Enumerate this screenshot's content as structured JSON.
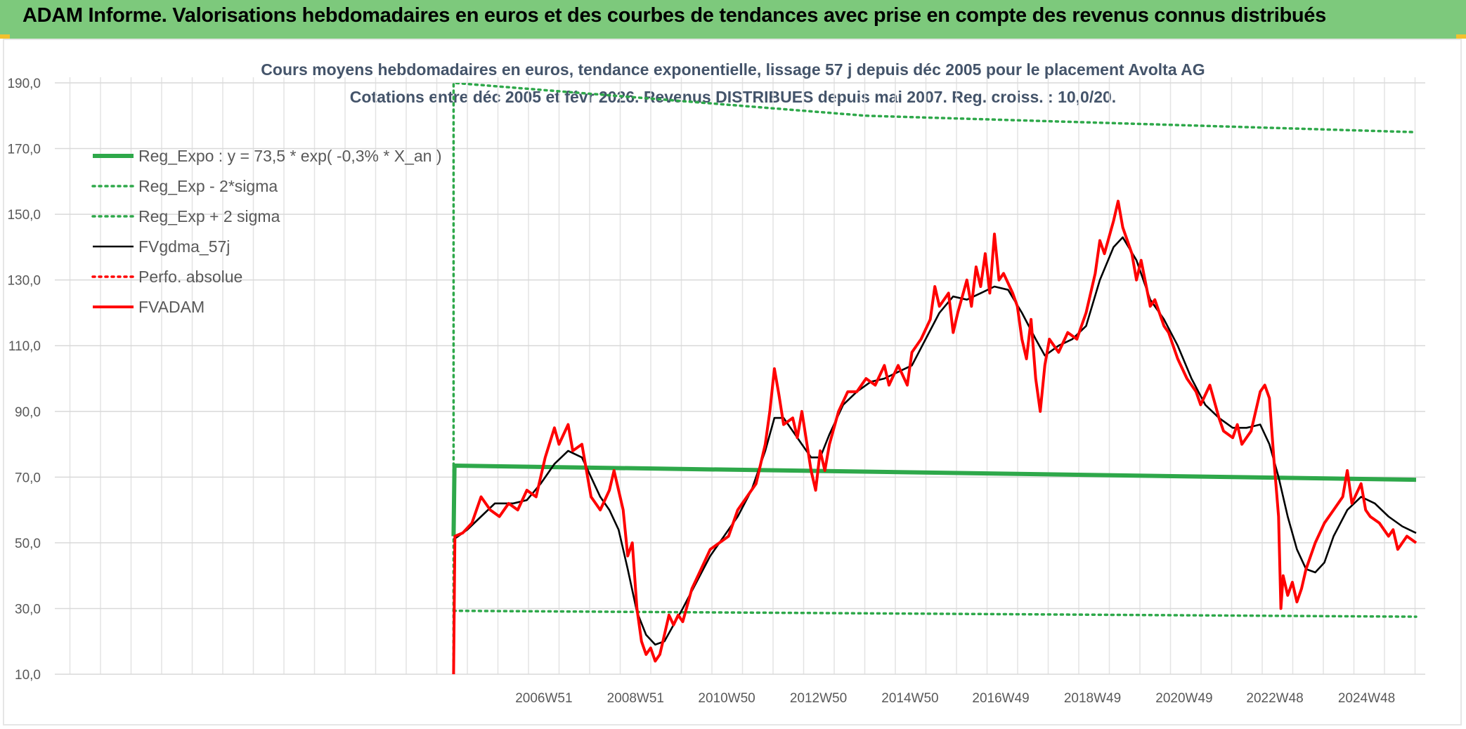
{
  "banner": {
    "title": "ADAM Informe. Valorisations hebdomadaires en euros et des courbes de tendances avec prise en compte des revenus connus distribués"
  },
  "chart_data": {
    "type": "line",
    "title": "Cours moyens hebdomadaires en euros, tendance exponentielle, lissage 57 j depuis déc 2005 pour le placement Avolta AG",
    "subtitle": "Cotations entre déc 2005 et févr 2026. Revenus DISTRIBUES depuis mai 2007. Reg. croiss. : 10,0/20.",
    "xlabel": "",
    "ylabel": "",
    "ylim": [
      10,
      190
    ],
    "xlim": [
      1996.3,
      2026.2
    ],
    "yticks": [
      "10,0",
      "30,0",
      "50,0",
      "70,0",
      "90,0",
      "110,0",
      "130,0",
      "150,0",
      "170,0",
      "190,0"
    ],
    "xticks": [
      {
        "label": "2006W51",
        "x": 2006.97
      },
      {
        "label": "2008W51",
        "x": 2008.97
      },
      {
        "label": "2010W50",
        "x": 2010.96
      },
      {
        "label": "2012W50",
        "x": 2012.96
      },
      {
        "label": "2014W50",
        "x": 2014.96
      },
      {
        "label": "2016W49",
        "x": 2016.94
      },
      {
        "label": "2018W49",
        "x": 2018.94
      },
      {
        "label": "2020W49",
        "x": 2020.94
      },
      {
        "label": "2022W48",
        "x": 2022.92
      },
      {
        "label": "2024W48",
        "x": 2024.92
      }
    ],
    "grid": true,
    "legend_position": "top-left",
    "series": [
      {
        "name": "Reg_Expo : y = 73,5 * exp( -0,3% *  X_an )",
        "color": "#2ea84a",
        "style": "solid-thick",
        "points": [
          [
            2005.0,
            52
          ],
          [
            2005.02,
            73.5
          ],
          [
            2026.0,
            69.2
          ]
        ]
      },
      {
        "name": "Reg_Exp - 2*sigma",
        "color": "#2ea84a",
        "style": "dotted",
        "points": [
          [
            2005.0,
            29.3
          ],
          [
            2026.0,
            27.5
          ]
        ]
      },
      {
        "name": "Reg_Exp + 2 sigma",
        "color": "#2ea84a",
        "style": "dotted",
        "points": [
          [
            2005.0,
            10
          ],
          [
            2005.0,
            190
          ],
          [
            2014.0,
            180
          ],
          [
            2026.0,
            175
          ]
        ]
      },
      {
        "name": "FVgdma_57j",
        "color": "#000000",
        "style": "solid",
        "points": [
          [
            2005.0,
            51
          ],
          [
            2005.3,
            54
          ],
          [
            2005.6,
            58
          ],
          [
            2005.9,
            62
          ],
          [
            2006.3,
            62
          ],
          [
            2006.6,
            63
          ],
          [
            2006.9,
            68
          ],
          [
            2007.2,
            74
          ],
          [
            2007.5,
            78
          ],
          [
            2007.8,
            76
          ],
          [
            2008.0,
            70
          ],
          [
            2008.2,
            64
          ],
          [
            2008.4,
            60
          ],
          [
            2008.6,
            54
          ],
          [
            2008.8,
            42
          ],
          [
            2009.0,
            29
          ],
          [
            2009.2,
            22
          ],
          [
            2009.4,
            19
          ],
          [
            2009.6,
            20
          ],
          [
            2009.8,
            25
          ],
          [
            2010.0,
            30
          ],
          [
            2010.3,
            38
          ],
          [
            2010.6,
            46
          ],
          [
            2010.9,
            52
          ],
          [
            2011.2,
            58
          ],
          [
            2011.5,
            66
          ],
          [
            2011.8,
            78
          ],
          [
            2012.0,
            88
          ],
          [
            2012.2,
            88
          ],
          [
            2012.4,
            84
          ],
          [
            2012.6,
            80
          ],
          [
            2012.8,
            76
          ],
          [
            2013.0,
            76
          ],
          [
            2013.2,
            83
          ],
          [
            2013.5,
            92
          ],
          [
            2013.8,
            96
          ],
          [
            2014.1,
            99
          ],
          [
            2014.4,
            100
          ],
          [
            2014.7,
            102
          ],
          [
            2015.0,
            104
          ],
          [
            2015.3,
            112
          ],
          [
            2015.6,
            120
          ],
          [
            2015.9,
            125
          ],
          [
            2016.2,
            124
          ],
          [
            2016.5,
            126
          ],
          [
            2016.8,
            128
          ],
          [
            2017.1,
            127
          ],
          [
            2017.4,
            120
          ],
          [
            2017.7,
            112
          ],
          [
            2017.9,
            107
          ],
          [
            2018.2,
            110
          ],
          [
            2018.5,
            112
          ],
          [
            2018.8,
            116
          ],
          [
            2019.1,
            130
          ],
          [
            2019.4,
            140
          ],
          [
            2019.6,
            143
          ],
          [
            2019.9,
            136
          ],
          [
            2020.2,
            124
          ],
          [
            2020.5,
            118
          ],
          [
            2020.8,
            110
          ],
          [
            2021.1,
            100
          ],
          [
            2021.4,
            92
          ],
          [
            2021.7,
            88
          ],
          [
            2022.0,
            85
          ],
          [
            2022.3,
            85
          ],
          [
            2022.6,
            86
          ],
          [
            2022.8,
            80
          ],
          [
            2023.0,
            70
          ],
          [
            2023.2,
            58
          ],
          [
            2023.4,
            48
          ],
          [
            2023.6,
            42
          ],
          [
            2023.8,
            41
          ],
          [
            2024.0,
            44
          ],
          [
            2024.2,
            52
          ],
          [
            2024.5,
            60
          ],
          [
            2024.8,
            64
          ],
          [
            2025.1,
            62
          ],
          [
            2025.4,
            58
          ],
          [
            2025.7,
            55
          ],
          [
            2026.0,
            53
          ]
        ]
      },
      {
        "name": "Perfo. absolue",
        "color": "#ff0000",
        "style": "dotted",
        "points": []
      },
      {
        "name": "FVADAM",
        "color": "#ff0000",
        "style": "solid-thick",
        "points": [
          [
            2005.0,
            10
          ],
          [
            2005.03,
            52
          ],
          [
            2005.2,
            53
          ],
          [
            2005.4,
            56
          ],
          [
            2005.6,
            64
          ],
          [
            2005.8,
            60
          ],
          [
            2006.0,
            58
          ],
          [
            2006.2,
            62
          ],
          [
            2006.4,
            60
          ],
          [
            2006.6,
            66
          ],
          [
            2006.8,
            64
          ],
          [
            2007.0,
            76
          ],
          [
            2007.2,
            85
          ],
          [
            2007.3,
            80
          ],
          [
            2007.5,
            86
          ],
          [
            2007.6,
            78
          ],
          [
            2007.8,
            80
          ],
          [
            2007.9,
            72
          ],
          [
            2008.0,
            64
          ],
          [
            2008.2,
            60
          ],
          [
            2008.4,
            66
          ],
          [
            2008.5,
            72
          ],
          [
            2008.7,
            60
          ],
          [
            2008.8,
            46
          ],
          [
            2008.9,
            50
          ],
          [
            2009.0,
            30
          ],
          [
            2009.1,
            20
          ],
          [
            2009.2,
            16
          ],
          [
            2009.3,
            18
          ],
          [
            2009.4,
            14
          ],
          [
            2009.5,
            16
          ],
          [
            2009.6,
            22
          ],
          [
            2009.7,
            28
          ],
          [
            2009.8,
            25
          ],
          [
            2009.9,
            28
          ],
          [
            2010.0,
            26
          ],
          [
            2010.2,
            36
          ],
          [
            2010.4,
            42
          ],
          [
            2010.6,
            48
          ],
          [
            2010.8,
            50
          ],
          [
            2011.0,
            52
          ],
          [
            2011.2,
            60
          ],
          [
            2011.4,
            64
          ],
          [
            2011.6,
            68
          ],
          [
            2011.8,
            80
          ],
          [
            2011.9,
            90
          ],
          [
            2012.0,
            103
          ],
          [
            2012.1,
            95
          ],
          [
            2012.2,
            86
          ],
          [
            2012.4,
            88
          ],
          [
            2012.5,
            82
          ],
          [
            2012.6,
            90
          ],
          [
            2012.8,
            72
          ],
          [
            2012.9,
            66
          ],
          [
            2013.0,
            78
          ],
          [
            2013.1,
            72
          ],
          [
            2013.2,
            80
          ],
          [
            2013.4,
            90
          ],
          [
            2013.6,
            96
          ],
          [
            2013.8,
            96
          ],
          [
            2014.0,
            100
          ],
          [
            2014.2,
            98
          ],
          [
            2014.4,
            104
          ],
          [
            2014.5,
            98
          ],
          [
            2014.7,
            104
          ],
          [
            2014.9,
            98
          ],
          [
            2015.0,
            108
          ],
          [
            2015.2,
            112
          ],
          [
            2015.4,
            118
          ],
          [
            2015.5,
            128
          ],
          [
            2015.6,
            122
          ],
          [
            2015.8,
            126
          ],
          [
            2015.9,
            114
          ],
          [
            2016.0,
            120
          ],
          [
            2016.2,
            130
          ],
          [
            2016.3,
            122
          ],
          [
            2016.4,
            134
          ],
          [
            2016.5,
            128
          ],
          [
            2016.6,
            138
          ],
          [
            2016.7,
            126
          ],
          [
            2016.8,
            144
          ],
          [
            2016.9,
            130
          ],
          [
            2017.0,
            132
          ],
          [
            2017.2,
            126
          ],
          [
            2017.3,
            122
          ],
          [
            2017.4,
            112
          ],
          [
            2017.5,
            106
          ],
          [
            2017.6,
            118
          ],
          [
            2017.7,
            100
          ],
          [
            2017.8,
            90
          ],
          [
            2017.9,
            104
          ],
          [
            2018.0,
            112
          ],
          [
            2018.2,
            108
          ],
          [
            2018.4,
            114
          ],
          [
            2018.6,
            112
          ],
          [
            2018.8,
            120
          ],
          [
            2019.0,
            132
          ],
          [
            2019.1,
            142
          ],
          [
            2019.2,
            138
          ],
          [
            2019.4,
            148
          ],
          [
            2019.5,
            154
          ],
          [
            2019.6,
            146
          ],
          [
            2019.8,
            138
          ],
          [
            2019.9,
            130
          ],
          [
            2020.0,
            136
          ],
          [
            2020.2,
            122
          ],
          [
            2020.3,
            124
          ],
          [
            2020.5,
            116
          ],
          [
            2020.6,
            114
          ],
          [
            2020.8,
            106
          ],
          [
            2021.0,
            100
          ],
          [
            2021.2,
            96
          ],
          [
            2021.3,
            92
          ],
          [
            2021.5,
            98
          ],
          [
            2021.7,
            88
          ],
          [
            2021.8,
            84
          ],
          [
            2022.0,
            82
          ],
          [
            2022.1,
            86
          ],
          [
            2022.2,
            80
          ],
          [
            2022.4,
            84
          ],
          [
            2022.6,
            96
          ],
          [
            2022.7,
            98
          ],
          [
            2022.8,
            94
          ],
          [
            2022.9,
            75
          ],
          [
            2023.0,
            58
          ],
          [
            2023.05,
            30
          ],
          [
            2023.1,
            40
          ],
          [
            2023.2,
            34
          ],
          [
            2023.3,
            38
          ],
          [
            2023.4,
            32
          ],
          [
            2023.5,
            36
          ],
          [
            2023.6,
            42
          ],
          [
            2023.8,
            50
          ],
          [
            2024.0,
            56
          ],
          [
            2024.2,
            60
          ],
          [
            2024.4,
            64
          ],
          [
            2024.5,
            72
          ],
          [
            2024.6,
            62
          ],
          [
            2024.8,
            68
          ],
          [
            2024.9,
            60
          ],
          [
            2025.0,
            58
          ],
          [
            2025.2,
            56
          ],
          [
            2025.4,
            52
          ],
          [
            2025.5,
            54
          ],
          [
            2025.6,
            48
          ],
          [
            2025.8,
            52
          ],
          [
            2026.0,
            50
          ]
        ]
      }
    ]
  }
}
